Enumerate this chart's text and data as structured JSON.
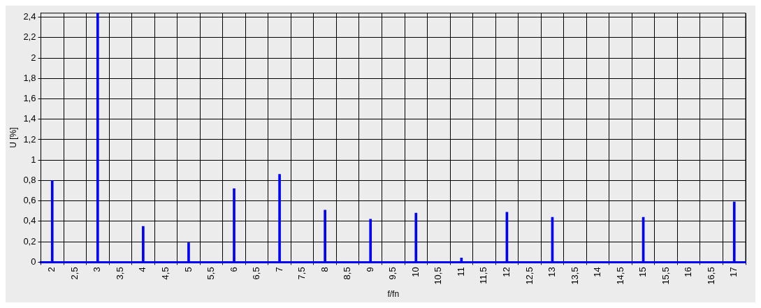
{
  "chart_data": {
    "type": "bar",
    "xlabel": "f/fn",
    "ylabel": "U [%]",
    "x": [
      2,
      3,
      4,
      5,
      6,
      7,
      8,
      9,
      10,
      11,
      12,
      13,
      15,
      17
    ],
    "series": [
      {
        "color": "#0000ff",
        "values": [
          0.8,
          2.44,
          0.35,
          0.19,
          0.72,
          0.86,
          0.51,
          0.42,
          0.48,
          0.04,
          0.49,
          0.44,
          0.44,
          0.59
        ]
      }
    ],
    "xlim": [
      2,
      17
    ],
    "xticks": [
      2,
      {
        "value": 2.5,
        "label": "2,5"
      },
      3,
      {
        "value": 3.5,
        "label": "3,5"
      },
      4,
      {
        "value": 4.5,
        "label": "4,5"
      },
      5,
      {
        "value": 5.5,
        "label": "5,5"
      },
      6,
      {
        "value": 6.5,
        "label": "6,5"
      },
      7,
      {
        "value": 7.5,
        "label": "7,5"
      },
      8,
      {
        "value": 8.5,
        "label": "8,5"
      },
      9,
      {
        "value": 9.5,
        "label": "9,5"
      },
      10,
      {
        "value": 10.5,
        "label": "10,5"
      },
      11,
      {
        "value": 11.5,
        "label": "11,5"
      },
      12,
      {
        "value": 12.5,
        "label": "12,5"
      },
      13,
      {
        "value": 13.5,
        "label": "13,5"
      },
      14,
      {
        "value": 14.5,
        "label": "14,5"
      },
      15,
      {
        "value": 15.5,
        "label": "15,5"
      },
      16,
      {
        "value": 16.5,
        "label": "16,5"
      },
      17
    ],
    "ylim": [
      0,
      2.44
    ],
    "yticks": [
      0,
      {
        "value": 0.2,
        "label": "0,2"
      },
      {
        "value": 0.4,
        "label": "0,4"
      },
      {
        "value": 0.6,
        "label": "0,6"
      },
      {
        "value": 0.8,
        "label": "0,8"
      },
      1,
      {
        "value": 1.2,
        "label": "1,2"
      },
      {
        "value": 1.4,
        "label": "1,4"
      },
      {
        "value": 1.6,
        "label": "1,6"
      },
      {
        "value": 1.8,
        "label": "1,8"
      },
      2,
      {
        "value": 2.2,
        "label": "2,2"
      },
      {
        "value": 2.4,
        "label": "2,4"
      }
    ],
    "grid": true
  }
}
